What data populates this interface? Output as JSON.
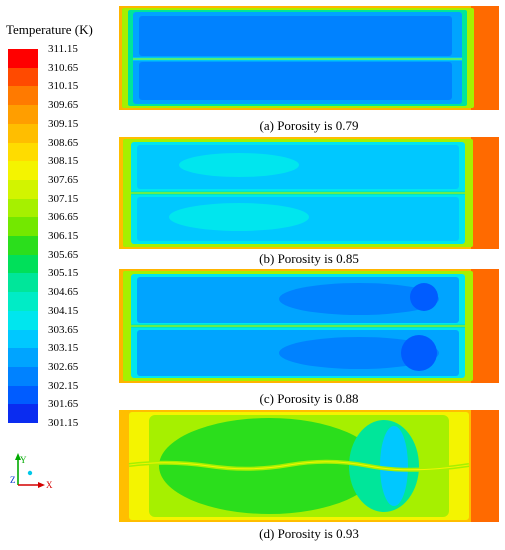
{
  "legend": {
    "title": "Temperature (K)",
    "ticks": [
      "311.15",
      "310.65",
      "310.15",
      "309.65",
      "309.15",
      "308.65",
      "308.15",
      "307.65",
      "307.15",
      "306.65",
      "306.15",
      "305.65",
      "305.15",
      "304.65",
      "304.15",
      "303.65",
      "303.15",
      "302.65",
      "302.15",
      "301.65",
      "301.15"
    ],
    "colors": [
      "#ff0000",
      "#ff4a00",
      "#ff7a00",
      "#ff9e00",
      "#ffbe00",
      "#ffdc00",
      "#f4f400",
      "#d2f400",
      "#a6f000",
      "#73e800",
      "#2bde1c",
      "#00e05a",
      "#00e69a",
      "#00ecc6",
      "#00e6ee",
      "#00c8ff",
      "#00a4ff",
      "#0082ff",
      "#005cff",
      "#0a2cf0"
    ]
  },
  "axes": {
    "y": "Y",
    "z": "Z",
    "x": "X"
  },
  "panels": [
    {
      "caption": "(a) Porosity is 0.79"
    },
    {
      "caption": "(b) Porosity is 0.85"
    },
    {
      "caption": "(c) Porosity is 0.88"
    },
    {
      "caption": "(d) Porosity is 0.93"
    }
  ]
}
